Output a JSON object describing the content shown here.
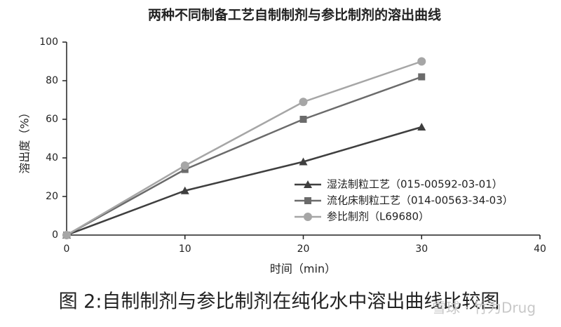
{
  "chart_data": {
    "type": "line",
    "title": "两种不同制备工艺自制制剂与参比制剂的溶出曲线",
    "x_label": "时间（min）",
    "y_label": "溶出度（%）",
    "caption": "图 2:自制制剂与参比制剂在纯化水中溶出曲线比较图",
    "watermark": "雪球 · 竹为Drug",
    "x": [
      0,
      10,
      20,
      30
    ],
    "series": [
      {
        "name": "湿法制粒工艺（015-00592-03-01）",
        "color": "#3f3f3f",
        "marker": "triangle",
        "values": [
          0,
          23,
          38,
          56
        ]
      },
      {
        "name": "流化床制粒工艺（014-00563-34-03）",
        "color": "#6b6b6b",
        "marker": "square",
        "values": [
          0,
          34,
          60,
          82
        ]
      },
      {
        "name": "参比制剂（L69680）",
        "color": "#a6a6a6",
        "marker": "circle",
        "values": [
          0,
          36,
          69,
          90
        ]
      }
    ],
    "xlim": [
      0,
      40
    ],
    "xticks": [
      0,
      10,
      20,
      30,
      40
    ],
    "ylim": [
      0,
      100
    ],
    "yticks": [
      0,
      20,
      40,
      60,
      80,
      100
    ],
    "legend": "lower right"
  }
}
